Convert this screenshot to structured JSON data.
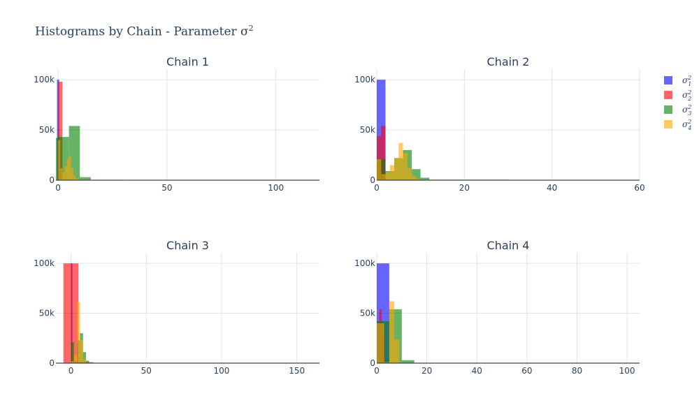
{
  "figure": {
    "title_main": "Histograms by Chain - Parameter σ",
    "title_sup": "2"
  },
  "legend": [
    {
      "name": "σ",
      "sup": "2",
      "sub": "1",
      "color": "#0000ff"
    },
    {
      "name": "σ",
      "sup": "2",
      "sub": "2",
      "color": "#ff0000"
    },
    {
      "name": "σ",
      "sup": "2",
      "sub": "3",
      "color": "#008000"
    },
    {
      "name": "σ",
      "sup": "2",
      "sub": "4",
      "color": "#ffa500"
    }
  ],
  "chart_data": [
    {
      "type": "bar",
      "title": "Chain 1",
      "xlim": [
        -1,
        120
      ],
      "ylim": [
        0,
        105000
      ],
      "xticks": [
        0,
        50,
        100
      ],
      "yticks": [
        0,
        50000,
        100000
      ],
      "ytick_labels": [
        "0",
        "50k",
        "100k"
      ],
      "grid": true,
      "series": [
        {
          "name": "σ₁²",
          "color": "#0000ff",
          "bins": [
            [
              -0.5,
              0.5,
              100000
            ]
          ]
        },
        {
          "name": "σ₂²",
          "color": "#ff0000",
          "bins": [
            [
              0,
              2,
              98000
            ]
          ]
        },
        {
          "name": "σ₃²",
          "color": "#008000",
          "bins": [
            [
              -1,
              0,
              42000
            ],
            [
              0,
              5,
              43000
            ],
            [
              5,
              10,
              54000
            ],
            [
              10,
              15,
              3000
            ],
            [
              15,
              30,
              400
            ],
            [
              35,
              40,
              200
            ]
          ]
        },
        {
          "name": "σ₄²",
          "color": "#ffa500",
          "bins": [
            [
              0,
              1,
              40000
            ],
            [
              1,
              2,
              12000
            ],
            [
              2,
              3,
              8000
            ],
            [
              3,
              4,
              14000
            ],
            [
              4,
              5,
              21000
            ],
            [
              5,
              6,
              24000
            ],
            [
              6,
              7,
              12000
            ],
            [
              7,
              8,
              5000
            ],
            [
              8,
              9,
              1500
            ]
          ]
        }
      ]
    },
    {
      "type": "bar",
      "title": "Chain 2",
      "xlim": [
        0,
        60
      ],
      "ylim": [
        0,
        105000
      ],
      "xticks": [
        0,
        20,
        40,
        60
      ],
      "yticks": [
        0,
        50000,
        100000
      ],
      "ytick_labels": [
        "0",
        "50k",
        "100k"
      ],
      "grid": true,
      "series": [
        {
          "name": "σ₁²",
          "color": "#0000ff",
          "bins": [
            [
              0,
              2,
              100000
            ]
          ]
        },
        {
          "name": "σ₂²",
          "color": "#ff0000",
          "bins": [
            [
              0,
              1,
              44000
            ],
            [
              1,
              2,
              54000
            ]
          ]
        },
        {
          "name": "σ₃²",
          "color": "#008000",
          "bins": [
            [
              0,
              2,
              21000
            ],
            [
              2,
              4,
              9000
            ],
            [
              4,
              6,
              22000
            ],
            [
              6,
              8,
              30000
            ],
            [
              8,
              10,
              11000
            ],
            [
              10,
              12,
              2500
            ],
            [
              12,
              30,
              500
            ],
            [
              32,
              34,
              300
            ]
          ]
        },
        {
          "name": "σ₄²",
          "color": "#ffa500",
          "bins": [
            [
              0,
              1,
              21000
            ],
            [
              1,
              2,
              6000
            ],
            [
              2,
              3,
              8000
            ],
            [
              3,
              4,
              15000
            ],
            [
              4,
              5,
              22000
            ],
            [
              5,
              6,
              37000
            ],
            [
              6,
              7,
              27000
            ],
            [
              7,
              8,
              12000
            ],
            [
              8,
              9,
              4000
            ],
            [
              9,
              10,
              1000
            ]
          ]
        }
      ]
    },
    {
      "type": "bar",
      "title": "Chain 3",
      "xlim": [
        -10,
        165
      ],
      "ylim": [
        0,
        105000
      ],
      "xticks": [
        0,
        50,
        100,
        150
      ],
      "yticks": [
        0,
        50000,
        100000
      ],
      "ytick_labels": [
        "0",
        "50k",
        "100k"
      ],
      "grid": true,
      "series": [
        {
          "name": "σ₁²",
          "color": "#0000ff",
          "bins": [
            [
              0,
              1,
              100000
            ]
          ]
        },
        {
          "name": "σ₂²",
          "color": "#ff0000",
          "bins": [
            [
              -5,
              5,
              100000
            ],
            [
              5,
              15,
              1000
            ]
          ]
        },
        {
          "name": "σ₃²",
          "color": "#008000",
          "bins": [
            [
              0,
              2,
              21000
            ],
            [
              2,
              4,
              2000
            ],
            [
              4,
              6,
              23000
            ],
            [
              6,
              8,
              30000
            ],
            [
              8,
              10,
              11000
            ],
            [
              10,
              12,
              2500
            ],
            [
              12,
              14,
              500
            ]
          ]
        },
        {
          "name": "σ₄²",
          "color": "#ffa500",
          "bins": [
            [
              0,
              2,
              2000
            ],
            [
              2,
              4,
              8000
            ],
            [
              4,
              6,
              61000
            ],
            [
              6,
              8,
              23000
            ],
            [
              8,
              10,
              4000
            ]
          ]
        }
      ]
    },
    {
      "type": "bar",
      "title": "Chain 4",
      "xlim": [
        0,
        105
      ],
      "ylim": [
        0,
        105000
      ],
      "xticks": [
        0,
        20,
        40,
        60,
        80,
        100
      ],
      "yticks": [
        0,
        50000,
        100000
      ],
      "ytick_labels": [
        "0",
        "50k",
        "100k"
      ],
      "grid": true,
      "series": [
        {
          "name": "σ₁²",
          "color": "#0000ff",
          "bins": [
            [
              0,
              5,
              100000
            ]
          ]
        },
        {
          "name": "σ₂²",
          "color": "#ff0000",
          "bins": [
            [
              1,
              2,
              54000
            ],
            [
              2,
              3,
              30000
            ]
          ]
        },
        {
          "name": "σ₃²",
          "color": "#008000",
          "bins": [
            [
              0,
              5,
              42000
            ],
            [
              5,
              10,
              54000
            ],
            [
              10,
              15,
              3000
            ]
          ]
        },
        {
          "name": "σ₄²",
          "color": "#ffa500",
          "bins": [
            [
              0,
              3,
              40000
            ],
            [
              3,
              5,
              1000
            ],
            [
              5,
              7,
              62000
            ],
            [
              7,
              9,
              24000
            ]
          ]
        }
      ]
    }
  ]
}
